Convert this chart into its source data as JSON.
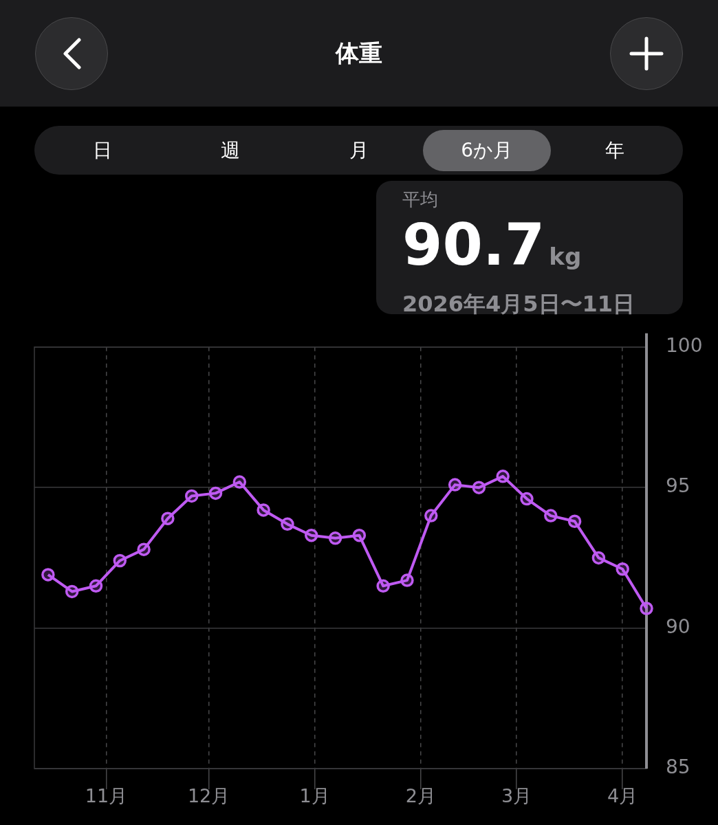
{
  "chart_data": {
    "type": "line",
    "title": "体重",
    "annotations": [
      "日",
      "週",
      "月",
      "6か月",
      "年",
      "平均",
      "90.7kg",
      "2026年4月5日〜11日"
    ],
    "x": [
      "2025-10-15",
      "2025-10-22",
      "2025-10-29",
      "2025-11-05",
      "2025-11-12",
      "2025-11-19",
      "2025-11-26",
      "2025-12-03",
      "2025-12-10",
      "2025-12-17",
      "2025-12-24",
      "2025-12-31",
      "2026-01-07",
      "2026-01-14",
      "2026-01-21",
      "2026-01-28",
      "2026-02-04",
      "2026-02-11",
      "2026-02-18",
      "2026-02-25",
      "2026-03-04",
      "2026-03-11",
      "2026-03-18",
      "2026-03-25",
      "2026-04-01",
      "2026-04-08"
    ],
    "values": [
      91.9,
      91.3,
      91.5,
      92.4,
      92.8,
      93.9,
      94.7,
      94.8,
      95.2,
      94.2,
      93.7,
      93.3,
      93.2,
      93.3,
      91.5,
      91.7,
      94.0,
      95.1,
      95.0,
      95.4,
      94.6,
      94.0,
      93.8,
      92.5,
      92.1,
      90.7
    ],
    "color": "#bf5af2",
    "xlim": [
      "2025-10-11",
      "2026-04-08"
    ],
    "xticks": [
      {
        "value": "2025-11-01",
        "label": "11月"
      },
      {
        "value": "2025-12-01",
        "label": "12月"
      },
      {
        "value": "2026-01-01",
        "label": "1月"
      },
      {
        "value": "2026-02-01",
        "label": "2月"
      },
      {
        "value": "2026-03-01",
        "label": "3月"
      },
      {
        "value": "2026-04-01",
        "label": "4月"
      }
    ],
    "ylim": [
      85,
      100
    ],
    "yticks": [
      85,
      90,
      95,
      100
    ],
    "grid": true,
    "legend": false,
    "marker": "circle",
    "line_style": "solid"
  }
}
